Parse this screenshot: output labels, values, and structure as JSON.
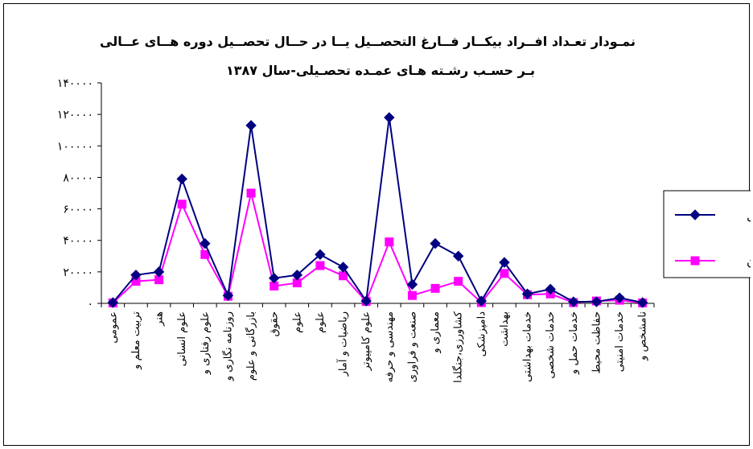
{
  "chart_data": {
    "type": "line",
    "title_line1": "نمـودار تعـداد افــراد بیکــار فــارغ التحصــیل یــا در حــال تحصــیل دوره هــای عــالی",
    "title_line2": "بـر حسـب رشـته هـای عمـده تحصـیلی-سال  ۱۳۸۷",
    "ylim": [
      0,
      140000
    ],
    "yticks": [
      0,
      20000,
      40000,
      60000,
      80000,
      100000,
      120000,
      140000
    ],
    "ytick_labels": [
      "۰",
      "۲۰۰۰۰",
      "۴۰۰۰۰",
      "۶۰۰۰۰",
      "۸۰۰۰۰",
      "۱۰۰۰۰۰",
      "۱۲۰۰۰۰",
      "۱۴۰۰۰۰"
    ],
    "grid": false,
    "legend_position": "right",
    "categories": [
      "عمومی",
      "تربیت معلم و",
      "هنر",
      "علوم انسانی",
      "علوم رفتاری و",
      "روزنامه نگاری و",
      "بازرگانی و علوم",
      "حقوق",
      "علوم",
      "علوم",
      "ریاضیات و آمار",
      "علوم کامپیوتر",
      "مهندسی و حرفه",
      "صنعت و فراوری",
      "معماری و",
      "کشاورزی،جنگلدا",
      "دامپزشکی",
      "بهداشت",
      "خدمات بهداشتی",
      "خدمات شخصی",
      "خدمات حمل و",
      "حفاظت محیط",
      "خدمات امنیتی",
      "نامشخص و"
    ],
    "series": [
      {
        "name": "کل",
        "color": "#000080",
        "marker": "diamond",
        "values": [
          500,
          18000,
          20000,
          79000,
          38000,
          5000,
          113000,
          16000,
          18000,
          31000,
          23000,
          1500,
          118000,
          12000,
          38000,
          30000,
          1500,
          26000,
          6000,
          9000,
          1000,
          1000,
          3500,
          500
        ]
      },
      {
        "name": "زن",
        "color": "#FF00FF",
        "marker": "square",
        "values": [
          300,
          14000,
          15000,
          63000,
          31000,
          4500,
          70000,
          11000,
          13000,
          24000,
          17500,
          1200,
          39000,
          5000,
          9500,
          14000,
          500,
          19000,
          5500,
          6000,
          500,
          1500,
          2000,
          300
        ]
      }
    ]
  }
}
